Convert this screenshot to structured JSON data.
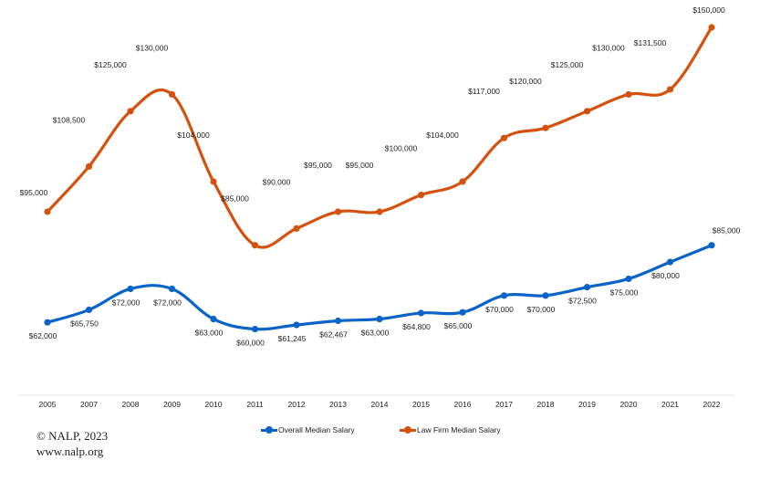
{
  "chart_data": {
    "type": "line",
    "title": "",
    "xlabel": "",
    "ylabel": "",
    "categories": [
      "2005",
      "2007",
      "2008",
      "2009",
      "2010",
      "2011",
      "2012",
      "2013",
      "2014",
      "2015",
      "2016",
      "2017",
      "2018",
      "2019",
      "2020",
      "2021",
      "2022"
    ],
    "ylim": [
      40000,
      155000
    ],
    "grid": false,
    "legend_position": "bottom",
    "series": [
      {
        "name": "Overall Median Salary",
        "color": "#0a64c8",
        "label_position": "below",
        "values": [
          62000,
          65750,
          72000,
          72000,
          63000,
          60000,
          61245,
          62467,
          63000,
          64800,
          65000,
          70000,
          70000,
          72500,
          75000,
          80000,
          85000
        ],
        "labels": [
          "$62,000",
          "$65,750",
          "$72,000",
          "$72,000",
          "$63,000",
          "$60,000",
          "$61,245",
          "$62,467",
          "$63,000",
          "$64,800",
          "$65,000",
          "$70,000",
          "$70,000",
          "$72,500",
          "$75,000",
          "$80,000",
          "$85,000"
        ]
      },
      {
        "name": "Law Firm Median Salary",
        "color": "#d4520e",
        "label_position": "above",
        "values": [
          95000,
          108500,
          125000,
          130000,
          104000,
          85000,
          90000,
          95000,
          95000,
          100000,
          104000,
          117000,
          120000,
          125000,
          130000,
          131500,
          150000
        ],
        "labels": [
          "$95,000",
          "$108,500",
          "$125,000",
          "$130,000",
          "$104,000",
          "$85,000",
          "$90,000",
          "$95,000",
          "$95,000",
          "$100,000",
          "$104,000",
          "$117,000",
          "$120,000",
          "$125,000",
          "$130,000",
          "$131,500",
          "$150,000"
        ]
      }
    ]
  },
  "legend": {
    "items": [
      {
        "label": "Overall Median Salary",
        "color": "#0a64c8"
      },
      {
        "label": "Law Firm Median Salary",
        "color": "#d4520e"
      }
    ]
  },
  "credit": {
    "line1": "© NALP, 2023",
    "line2": "www.nalp.org"
  }
}
